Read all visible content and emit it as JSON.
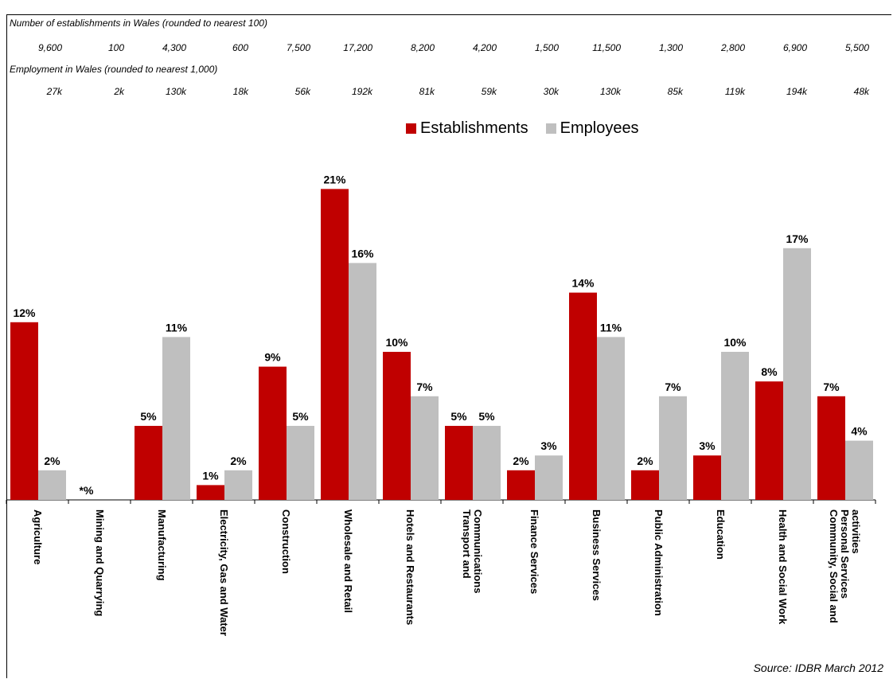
{
  "header": {
    "establishments_title": "Number of establishments in Wales (rounded to nearest 100)",
    "establishments_values": [
      "9,600",
      "100",
      "4,300",
      "600",
      "7,500",
      "17,200",
      "8,200",
      "4,200",
      "1,500",
      "11,500",
      "1,300",
      "2,800",
      "6,900",
      "5,500"
    ],
    "employment_title": "Employment in Wales (rounded to nearest 1,000)",
    "employment_values": [
      "27k",
      "2k",
      "130k",
      "18k",
      "56k",
      "192k",
      "81k",
      "59k",
      "30k",
      "130k",
      "85k",
      "119k",
      "194k",
      "48k"
    ]
  },
  "source": "Source: IDBR March 2012",
  "chart_data": {
    "type": "bar",
    "categories": [
      [
        "Agriculture"
      ],
      [
        "Mining and Quarrying"
      ],
      [
        "Manufacturing"
      ],
      [
        "Electricity, Gas and Water"
      ],
      [
        "Construction"
      ],
      [
        "Wholesale and Retail"
      ],
      [
        "Hotels and Restaurants"
      ],
      [
        "Transport and",
        "Communications"
      ],
      [
        "Finance Services"
      ],
      [
        "Business Services"
      ],
      [
        "Public Administration"
      ],
      [
        "Education"
      ],
      [
        "Health and Social Work"
      ],
      [
        "Community, Social and",
        "Personal Services",
        "activities"
      ]
    ],
    "series": [
      {
        "name": "Establishments",
        "color": "#C00000",
        "values": [
          12,
          0,
          5,
          1,
          9,
          21,
          10,
          5,
          2,
          14,
          2,
          3,
          8,
          7
        ],
        "labels": [
          "12%",
          "*%",
          "5%",
          "1%",
          "9%",
          "21%",
          "10%",
          "5%",
          "2%",
          "14%",
          "2%",
          "3%",
          "8%",
          "7%"
        ]
      },
      {
        "name": "Employees",
        "color": "#BFBFBF",
        "values": [
          2,
          0,
          11,
          2,
          5,
          16,
          7,
          5,
          3,
          11,
          7,
          10,
          17,
          4
        ],
        "labels": [
          "2%",
          "",
          "11%",
          "2%",
          "5%",
          "16%",
          "7%",
          "5%",
          "3%",
          "11%",
          "7%",
          "10%",
          "17%",
          "4%"
        ]
      }
    ],
    "ylim": [
      0,
      24
    ],
    "legend_position": "top-center",
    "grid": false
  }
}
